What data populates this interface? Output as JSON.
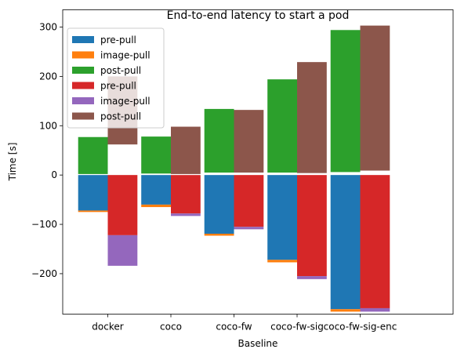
{
  "chart_data": {
    "type": "bar",
    "title": "End-to-end latency to start a pod",
    "xlabel": "Baseline",
    "ylabel": "Time [s]",
    "categories": [
      "docker",
      "coco",
      "coco-fw",
      "coco-fw-sig",
      "coco-fw-sig-enc"
    ],
    "ylim": [
      -282,
      335
    ],
    "yticks": [
      -200,
      -100,
      0,
      100,
      200,
      300
    ],
    "grid": false,
    "legend_position": "top-left",
    "groups": [
      {
        "series": [
          {
            "name": "pre-pull",
            "color": "#1f77b4",
            "values": [
              -72,
              -60,
              -119,
              -172,
              -272
            ]
          },
          {
            "name": "image-pull",
            "color": "#ff7f0e",
            "values": [
              -3,
              -5,
              -4,
              -5,
              -5
            ]
          },
          {
            "name": "post-pull",
            "color": "#2ca02c",
            "values": [
              75,
              75,
              129,
              189,
              288
            ]
          }
        ],
        "post_base": [
          2,
          3,
          5,
          5,
          6
        ]
      },
      {
        "series": [
          {
            "name": "pre-pull",
            "color": "#d62728",
            "values": [
              -122,
              -78,
              -105,
              -205,
              -270
            ]
          },
          {
            "name": "image-pull",
            "color": "#9467bd",
            "values": [
              -62,
              -5,
              -5,
              -6,
              -7
            ]
          },
          {
            "name": "post-pull",
            "color": "#8c564b",
            "values": [
              138,
              96,
              127,
              225,
              294
            ]
          }
        ],
        "post_base": [
          62,
          2,
          5,
          4,
          9
        ]
      }
    ],
    "legend": [
      "pre-pull",
      "image-pull",
      "post-pull",
      "pre-pull",
      "image-pull",
      "post-pull"
    ]
  }
}
